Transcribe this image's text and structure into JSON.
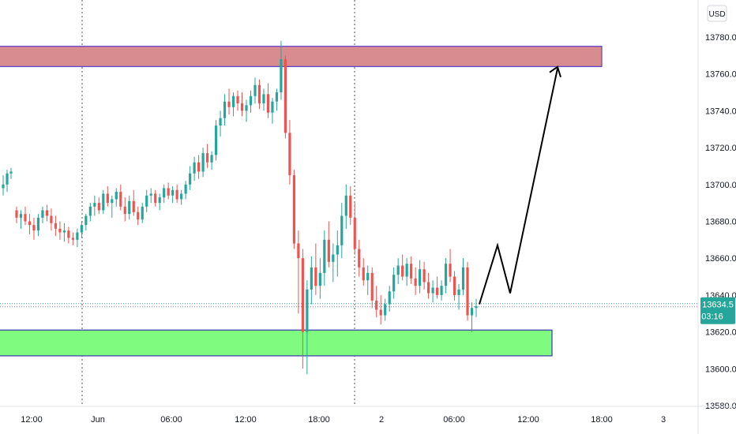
{
  "chart_data": {
    "type": "candlestick",
    "currency": "USD",
    "y_axis": {
      "range": [
        13575,
        13790
      ],
      "ticks": [
        "13780.0",
        "13760.0",
        "13740.0",
        "13720.0",
        "13700.0",
        "13680.0",
        "13660.0",
        "13640.0",
        "13620.0",
        "13600.0",
        "13580.0"
      ],
      "tick_values": [
        13780,
        13760,
        13740,
        13720,
        13700,
        13680,
        13660,
        13640,
        13620,
        13600,
        13580
      ]
    },
    "x_axis": {
      "ticks": [
        "12:00",
        "Jun",
        "06:00",
        "12:00",
        "18:00",
        "2",
        "06:00",
        "12:00",
        "18:00",
        "3"
      ],
      "day_separators": [
        "Jun",
        "2"
      ]
    },
    "last_price": {
      "value": "13634.5",
      "countdown": "03:16",
      "numeric": 13634.5
    },
    "zones": [
      {
        "name": "resistance",
        "low": 13764,
        "high": 13775,
        "color": "#d98c8f",
        "border": "#5b3fcf"
      },
      {
        "name": "support",
        "low": 13607,
        "high": 13621,
        "color": "#7ffb7f",
        "border": "#3a3aa8"
      }
    ],
    "projection": {
      "points": [
        [
          13635,
          "now"
        ],
        [
          13667,
          "+3h"
        ],
        [
          13641,
          "+4h"
        ],
        [
          13763,
          "+8h"
        ]
      ],
      "color": "#000000"
    },
    "colors": {
      "up": "#26a69a",
      "down": "#ef5350",
      "price_tag": "#26a69a"
    },
    "candles_ohlc": [
      [
        13698,
        13705,
        13694,
        13700
      ],
      [
        13700,
        13708,
        13696,
        13706
      ],
      [
        13706,
        13709,
        13703,
        13707
      ],
      [
        13686,
        13688,
        13679,
        13682
      ],
      [
        13682,
        13686,
        13676,
        13684
      ],
      [
        13684,
        13688,
        13678,
        13680
      ],
      [
        13680,
        13684,
        13673,
        13678
      ],
      [
        13678,
        13682,
        13670,
        13675
      ],
      [
        13675,
        13684,
        13672,
        13682
      ],
      [
        13682,
        13688,
        13679,
        13686
      ],
      [
        13686,
        13689,
        13680,
        13683
      ],
      [
        13683,
        13687,
        13675,
        13679
      ],
      [
        13679,
        13683,
        13672,
        13676
      ],
      [
        13676,
        13680,
        13670,
        13674
      ],
      [
        13674,
        13679,
        13669,
        13675
      ],
      [
        13675,
        13677,
        13668,
        13671
      ],
      [
        13671,
        13674,
        13667,
        13670
      ],
      [
        13670,
        13676,
        13666,
        13674
      ],
      [
        13674,
        13680,
        13671,
        13678
      ],
      [
        13678,
        13684,
        13675,
        13683
      ],
      [
        13683,
        13690,
        13680,
        13688
      ],
      [
        13688,
        13694,
        13683,
        13690
      ],
      [
        13690,
        13693,
        13684,
        13686
      ],
      [
        13686,
        13697,
        13684,
        13695
      ],
      [
        13695,
        13699,
        13688,
        13690
      ],
      [
        13690,
        13694,
        13682,
        13692
      ],
      [
        13692,
        13698,
        13688,
        13696
      ],
      [
        13696,
        13700,
        13686,
        13688
      ],
      [
        13688,
        13693,
        13680,
        13684
      ],
      [
        13684,
        13694,
        13681,
        13691
      ],
      [
        13691,
        13697,
        13683,
        13685
      ],
      [
        13685,
        13688,
        13678,
        13681
      ],
      [
        13681,
        13690,
        13679,
        13688
      ],
      [
        13688,
        13697,
        13685,
        13694
      ],
      [
        13694,
        13698,
        13690,
        13695
      ],
      [
        13695,
        13697,
        13688,
        13690
      ],
      [
        13690,
        13695,
        13686,
        13693
      ],
      [
        13693,
        13700,
        13690,
        13698
      ],
      [
        13698,
        13701,
        13692,
        13694
      ],
      [
        13694,
        13699,
        13690,
        13697
      ],
      [
        13697,
        13700,
        13690,
        13692
      ],
      [
        13692,
        13697,
        13689,
        13695
      ],
      [
        13695,
        13702,
        13692,
        13700
      ],
      [
        13700,
        13710,
        13697,
        13706
      ],
      [
        13706,
        13715,
        13702,
        13712
      ],
      [
        13712,
        13716,
        13703,
        13707
      ],
      [
        13707,
        13720,
        13704,
        13717
      ],
      [
        13717,
        13722,
        13709,
        13712
      ],
      [
        13712,
        13718,
        13708,
        13716
      ],
      [
        13716,
        13735,
        13713,
        13732
      ],
      [
        13732,
        13740,
        13726,
        13736
      ],
      [
        13736,
        13749,
        13732,
        13745
      ],
      [
        13745,
        13752,
        13738,
        13742
      ],
      [
        13742,
        13750,
        13737,
        13748
      ],
      [
        13748,
        13751,
        13740,
        13744
      ],
      [
        13744,
        13750,
        13737,
        13740
      ],
      [
        13740,
        13746,
        13734,
        13743
      ],
      [
        13743,
        13751,
        13739,
        13748
      ],
      [
        13748,
        13758,
        13744,
        13754
      ],
      [
        13754,
        13757,
        13741,
        13744
      ],
      [
        13744,
        13752,
        13740,
        13749
      ],
      [
        13749,
        13755,
        13736,
        13739
      ],
      [
        13739,
        13747,
        13733,
        13745
      ],
      [
        13745,
        13752,
        13740,
        13750
      ],
      [
        13750,
        13778,
        13746,
        13768
      ],
      [
        13768,
        13770,
        13725,
        13728
      ],
      [
        13728,
        13735,
        13700,
        13705
      ],
      [
        13705,
        13708,
        13665,
        13668
      ],
      [
        13668,
        13675,
        13630,
        13660
      ],
      [
        13660,
        13665,
        13600,
        13620
      ],
      [
        13620,
        13648,
        13597,
        13643
      ],
      [
        13643,
        13661,
        13635,
        13655
      ],
      [
        13655,
        13668,
        13640,
        13645
      ],
      [
        13645,
        13660,
        13638,
        13652
      ],
      [
        13652,
        13675,
        13645,
        13670
      ],
      [
        13670,
        13680,
        13655,
        13658
      ],
      [
        13658,
        13668,
        13647,
        13662
      ],
      [
        13662,
        13675,
        13650,
        13667
      ],
      [
        13667,
        13690,
        13660,
        13683
      ],
      [
        13683,
        13700,
        13676,
        13694
      ],
      [
        13694,
        13699,
        13678,
        13682
      ],
      [
        13682,
        13690,
        13662,
        13665
      ],
      [
        13665,
        13670,
        13650,
        13655
      ],
      [
        13655,
        13660,
        13645,
        13648
      ],
      [
        13648,
        13656,
        13640,
        13652
      ],
      [
        13652,
        13655,
        13633,
        13637
      ],
      [
        13637,
        13645,
        13628,
        13632
      ],
      [
        13632,
        13640,
        13624,
        13629
      ],
      [
        13629,
        13638,
        13626,
        13635
      ],
      [
        13635,
        13645,
        13631,
        13642
      ],
      [
        13642,
        13655,
        13638,
        13651
      ],
      [
        13651,
        13660,
        13646,
        13656
      ],
      [
        13656,
        13662,
        13648,
        13650
      ],
      [
        13650,
        13660,
        13645,
        13657
      ],
      [
        13657,
        13661,
        13646,
        13649
      ],
      [
        13649,
        13655,
        13640,
        13645
      ],
      [
        13645,
        13659,
        13641,
        13654
      ],
      [
        13654,
        13658,
        13643,
        13647
      ],
      [
        13647,
        13652,
        13638,
        13641
      ],
      [
        13641,
        13648,
        13636,
        13644
      ],
      [
        13644,
        13650,
        13638,
        13640
      ],
      [
        13640,
        13648,
        13637,
        13645
      ],
      [
        13645,
        13660,
        13641,
        13657
      ],
      [
        13657,
        13665,
        13647,
        13650
      ],
      [
        13650,
        13653,
        13637,
        13640
      ],
      [
        13640,
        13646,
        13632,
        13643
      ],
      [
        13643,
        13660,
        13640,
        13655
      ],
      [
        13655,
        13658,
        13626,
        13629
      ],
      [
        13629,
        13636,
        13620,
        13633
      ],
      [
        13633,
        13638,
        13628,
        13634
      ]
    ]
  }
}
